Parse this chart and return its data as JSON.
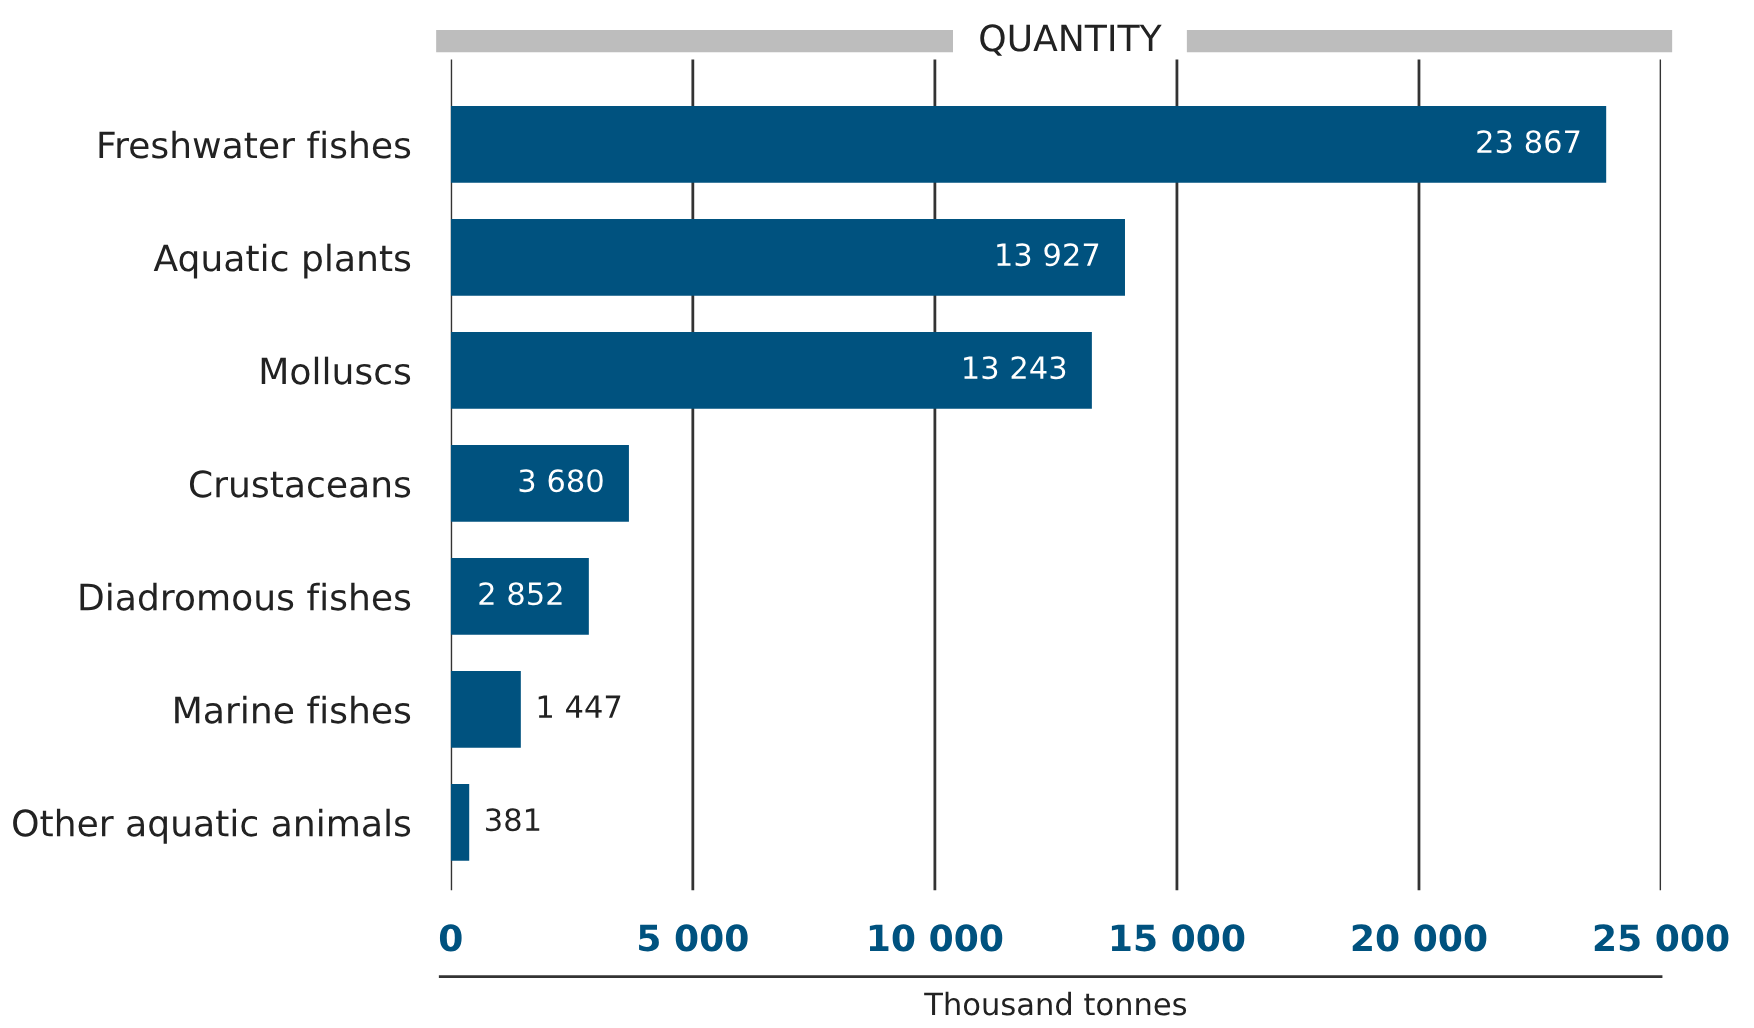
{
  "chart_data": {
    "type": "bar",
    "orientation": "horizontal",
    "title": "QUANTITY",
    "xlabel": "Thousand tonnes",
    "categories": [
      "Freshwater fishes",
      "Aquatic plants",
      "Molluscs",
      "Crustaceans",
      "Diadromous fishes",
      "Marine fishes",
      "Other aquatic animals"
    ],
    "values": [
      23867,
      13927,
      13243,
      3680,
      2852,
      1447,
      381
    ],
    "value_labels": [
      "23 867",
      "13 927",
      "13 243",
      "3 680",
      "2 852",
      "1 447",
      "381"
    ],
    "color": "#00527f",
    "xlim": [
      0,
      25000
    ],
    "xticks": [
      0,
      {
        "value": 5000,
        "label": "5 000"
      },
      {
        "value": 10000,
        "label": "10 000"
      },
      {
        "value": 15000,
        "label": "15 000"
      },
      {
        "value": 20000,
        "label": "20 000"
      },
      {
        "value": 25000,
        "label": "25 000"
      }
    ],
    "grid": "x",
    "legend": false
  }
}
